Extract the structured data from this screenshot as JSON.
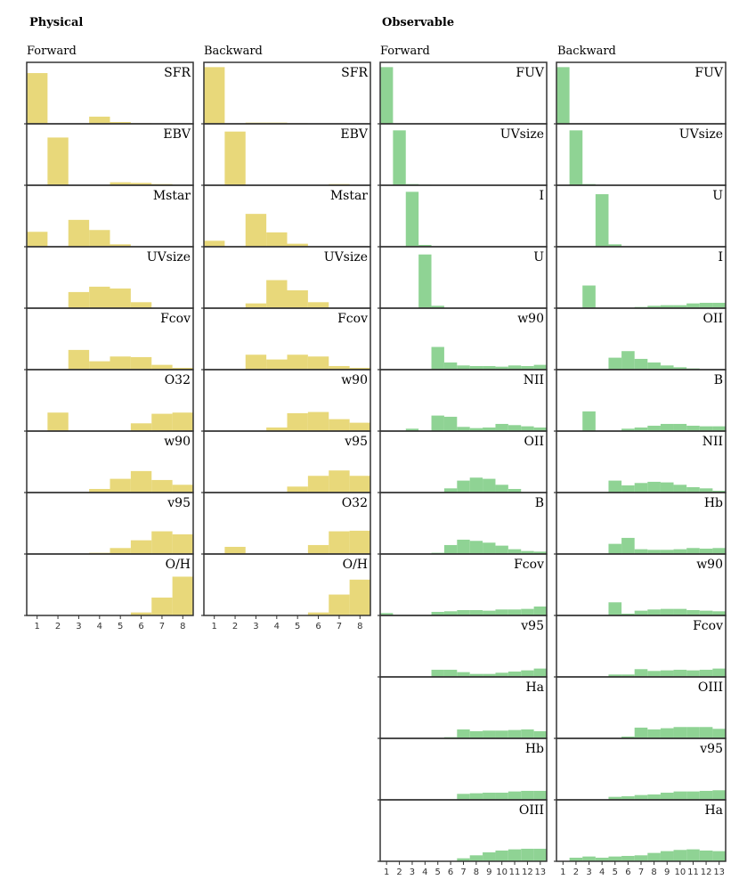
{
  "sections": [
    {
      "title": "Physical"
    },
    {
      "title": "Observable"
    }
  ],
  "columns": [
    {
      "title": "Forward"
    },
    {
      "title": "Backward"
    },
    {
      "title": "Forward"
    },
    {
      "title": "Backward"
    }
  ],
  "colors": {
    "physical": "#e8d87a",
    "observable": "#8fd394",
    "axis": "#333333"
  },
  "chart_data": [
    {
      "type": "bar",
      "title": "Physical - Forward",
      "categories": [
        "1",
        "2",
        "3",
        "4",
        "5",
        "6",
        "7",
        "8"
      ],
      "ylim": [
        0,
        1
      ],
      "panels": [
        {
          "label": "SFR",
          "values": [
            0.85,
            0,
            0,
            0.12,
            0.03,
            0.01,
            0,
            0
          ]
        },
        {
          "label": "EBV",
          "values": [
            0,
            0.8,
            0,
            0,
            0.05,
            0.04,
            0.02,
            0
          ]
        },
        {
          "label": "Mstar",
          "values": [
            0.25,
            0,
            0.45,
            0.28,
            0.04,
            0,
            0,
            0
          ]
        },
        {
          "label": "UVsize",
          "values": [
            0,
            0,
            0.27,
            0.36,
            0.33,
            0.1,
            0,
            0
          ]
        },
        {
          "label": "Fcov",
          "values": [
            0,
            0,
            0.33,
            0.14,
            0.22,
            0.21,
            0.08,
            0.03
          ]
        },
        {
          "label": "O32",
          "values": [
            0,
            0.31,
            0,
            0,
            0,
            0.13,
            0.29,
            0.31
          ]
        },
        {
          "label": "w90",
          "values": [
            0,
            0,
            0,
            0.06,
            0.23,
            0.36,
            0.21,
            0.13
          ]
        },
        {
          "label": "v95",
          "values": [
            0,
            0,
            0,
            0.02,
            0.1,
            0.23,
            0.38,
            0.33
          ]
        },
        {
          "label": "O/H",
          "values": [
            0,
            0,
            0,
            0,
            0,
            0.05,
            0.3,
            0.65
          ]
        }
      ]
    },
    {
      "type": "bar",
      "title": "Physical - Backward",
      "categories": [
        "1",
        "2",
        "3",
        "4",
        "5",
        "6",
        "7",
        "8"
      ],
      "ylim": [
        0,
        1
      ],
      "panels": [
        {
          "label": "SFR",
          "values": [
            0.95,
            0,
            0.02,
            0.02,
            0.01,
            0,
            0,
            0
          ]
        },
        {
          "label": "EBV",
          "values": [
            0,
            0.9,
            0,
            0,
            0,
            0,
            0.02,
            0
          ]
        },
        {
          "label": "Mstar",
          "values": [
            0.1,
            0,
            0.55,
            0.24,
            0.05,
            0,
            0,
            0
          ]
        },
        {
          "label": "UVsize",
          "values": [
            0,
            0,
            0.08,
            0.47,
            0.3,
            0.1,
            0,
            0
          ]
        },
        {
          "label": "Fcov",
          "values": [
            0,
            0,
            0.25,
            0.17,
            0.25,
            0.22,
            0.06,
            0.03
          ]
        },
        {
          "label": "w90",
          "values": [
            0,
            0,
            0,
            0.06,
            0.3,
            0.32,
            0.2,
            0.14
          ]
        },
        {
          "label": "v95",
          "values": [
            0,
            0,
            0,
            0,
            0.1,
            0.28,
            0.37,
            0.28
          ]
        },
        {
          "label": "O32",
          "values": [
            0,
            0.12,
            0,
            0,
            0,
            0.15,
            0.38,
            0.39
          ]
        },
        {
          "label": "O/H",
          "values": [
            0,
            0,
            0,
            0,
            0,
            0.05,
            0.35,
            0.6
          ]
        }
      ]
    },
    {
      "type": "bar",
      "title": "Observable - Forward",
      "categories": [
        "1",
        "2",
        "3",
        "4",
        "5",
        "6",
        "7",
        "8",
        "9",
        "10",
        "11",
        "12",
        "13"
      ],
      "ylim": [
        0,
        1
      ],
      "panels": [
        {
          "label": "FUV",
          "values": [
            0.95,
            0,
            0,
            0,
            0,
            0,
            0,
            0,
            0,
            0,
            0,
            0,
            0
          ]
        },
        {
          "label": "UVsize",
          "values": [
            0,
            0.92,
            0.02,
            0.01,
            0,
            0,
            0,
            0,
            0,
            0,
            0,
            0,
            0
          ]
        },
        {
          "label": "I",
          "values": [
            0,
            0,
            0.92,
            0.03,
            0,
            0,
            0,
            0,
            0,
            0,
            0,
            0,
            0
          ]
        },
        {
          "label": "U",
          "values": [
            0,
            0,
            0,
            0.9,
            0.04,
            0,
            0,
            0,
            0,
            0,
            0,
            0,
            0
          ]
        },
        {
          "label": "w90",
          "values": [
            0,
            0,
            0,
            0,
            0.38,
            0.12,
            0.07,
            0.06,
            0.06,
            0.05,
            0.07,
            0.06,
            0.08
          ]
        },
        {
          "label": "NII",
          "values": [
            0,
            0,
            0.04,
            0,
            0.26,
            0.24,
            0.07,
            0.05,
            0.06,
            0.12,
            0.1,
            0.08,
            0.06
          ]
        },
        {
          "label": "OII",
          "values": [
            0,
            0,
            0,
            0,
            0,
            0.07,
            0.2,
            0.25,
            0.23,
            0.13,
            0.06,
            0,
            0
          ]
        },
        {
          "label": "B",
          "values": [
            0,
            0,
            0,
            0,
            0.02,
            0.15,
            0.24,
            0.22,
            0.19,
            0.14,
            0.08,
            0.05,
            0.04
          ]
        },
        {
          "label": "Fcov",
          "values": [
            0.04,
            0,
            0,
            0,
            0.06,
            0.07,
            0.09,
            0.09,
            0.08,
            0.1,
            0.1,
            0.11,
            0.15
          ]
        },
        {
          "label": "v95",
          "values": [
            0,
            0,
            0,
            0,
            0.12,
            0.12,
            0.08,
            0.05,
            0.05,
            0.07,
            0.09,
            0.11,
            0.14
          ]
        },
        {
          "label": "Ha",
          "values": [
            0,
            0,
            0,
            0,
            0,
            0.02,
            0.15,
            0.12,
            0.13,
            0.13,
            0.14,
            0.15,
            0.12
          ]
        },
        {
          "label": "Hb",
          "values": [
            0,
            0,
            0,
            0,
            0,
            0,
            0.1,
            0.11,
            0.12,
            0.12,
            0.14,
            0.15,
            0.15
          ]
        },
        {
          "label": "OIII",
          "values": [
            0,
            0,
            0,
            0,
            0,
            0,
            0.05,
            0.1,
            0.15,
            0.18,
            0.2,
            0.21,
            0.21
          ]
        }
      ]
    },
    {
      "type": "bar",
      "title": "Observable - Backward",
      "categories": [
        "1",
        "2",
        "3",
        "4",
        "5",
        "6",
        "7",
        "8",
        "9",
        "10",
        "11",
        "12",
        "13"
      ],
      "ylim": [
        0,
        1
      ],
      "panels": [
        {
          "label": "FUV",
          "values": [
            0.95,
            0,
            0,
            0,
            0,
            0,
            0,
            0,
            0,
            0,
            0,
            0,
            0
          ]
        },
        {
          "label": "UVsize",
          "values": [
            0,
            0.92,
            0.02,
            0,
            0,
            0,
            0,
            0,
            0,
            0,
            0,
            0,
            0
          ]
        },
        {
          "label": "U",
          "values": [
            0,
            0,
            0,
            0.88,
            0.04,
            0,
            0,
            0,
            0,
            0,
            0,
            0,
            0
          ]
        },
        {
          "label": "I",
          "values": [
            0,
            0,
            0.38,
            0,
            0,
            0,
            0.02,
            0.04,
            0.05,
            0.05,
            0.08,
            0.09,
            0.09
          ]
        },
        {
          "label": "OII",
          "values": [
            0,
            0,
            0,
            0,
            0.2,
            0.31,
            0.18,
            0.12,
            0.07,
            0.04,
            0.02,
            0,
            0
          ]
        },
        {
          "label": "B",
          "values": [
            0,
            0,
            0.33,
            0,
            0,
            0.04,
            0.06,
            0.09,
            0.12,
            0.12,
            0.09,
            0.08,
            0.08
          ]
        },
        {
          "label": "NII",
          "values": [
            0,
            0,
            0,
            0,
            0.2,
            0.12,
            0.16,
            0.18,
            0.17,
            0.13,
            0.09,
            0.07,
            0.03
          ]
        },
        {
          "label": "Hb",
          "values": [
            0,
            0,
            0,
            0,
            0.17,
            0.27,
            0.08,
            0.07,
            0.07,
            0.08,
            0.1,
            0.09,
            0.1
          ]
        },
        {
          "label": "w90",
          "values": [
            0,
            0,
            0,
            0,
            0.22,
            0.03,
            0.08,
            0.1,
            0.11,
            0.11,
            0.09,
            0.08,
            0.07
          ]
        },
        {
          "label": "Fcov",
          "values": [
            0,
            0,
            0,
            0,
            0.04,
            0.04,
            0.13,
            0.1,
            0.11,
            0.12,
            0.11,
            0.12,
            0.14
          ]
        },
        {
          "label": "OIII",
          "values": [
            0,
            0,
            0,
            0,
            0,
            0.03,
            0.18,
            0.15,
            0.17,
            0.19,
            0.19,
            0.19,
            0.16
          ]
        },
        {
          "label": "v95",
          "values": [
            0,
            0,
            0,
            0,
            0.05,
            0.06,
            0.08,
            0.09,
            0.12,
            0.14,
            0.14,
            0.15,
            0.16
          ]
        },
        {
          "label": "Ha",
          "values": [
            0,
            0.06,
            0.08,
            0.06,
            0.08,
            0.09,
            0.1,
            0.14,
            0.17,
            0.19,
            0.2,
            0.18,
            0.17
          ]
        }
      ]
    }
  ]
}
